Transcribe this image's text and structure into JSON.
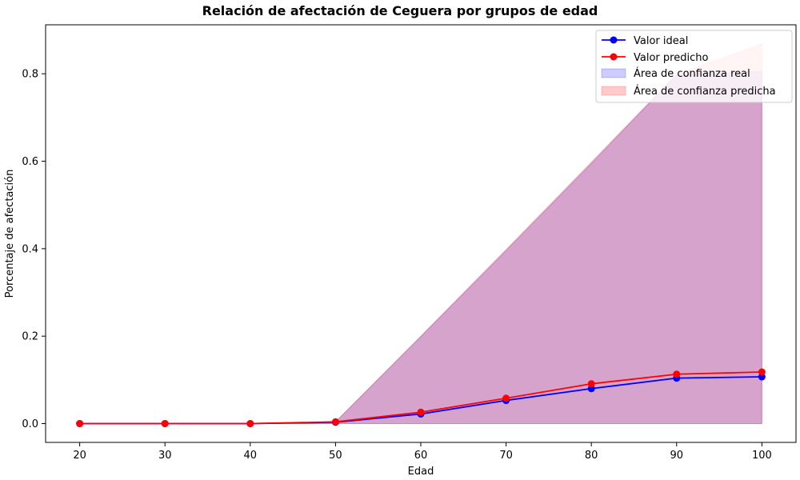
{
  "chart_data": {
    "type": "line",
    "title": "Relación de afectación de Ceguera por grupos de edad",
    "xlabel": "Edad",
    "ylabel": "Porcentaje de afectación",
    "x": [
      20,
      30,
      40,
      50,
      60,
      70,
      80,
      90,
      100
    ],
    "xticks": [
      "20",
      "30",
      "40",
      "50",
      "60",
      "70",
      "80",
      "90",
      "100"
    ],
    "yticks": [
      "0.0",
      "0.2",
      "0.4",
      "0.6",
      "0.8"
    ],
    "xlim": [
      16,
      104
    ],
    "ylim": [
      -0.043,
      0.912
    ],
    "grid": false,
    "legend_position": "top-right",
    "series": [
      {
        "name": "Valor ideal",
        "color": "#0000ff",
        "values": [
          0.0,
          0.0,
          0.0,
          0.003,
          0.022,
          0.053,
          0.08,
          0.104,
          0.107
        ]
      },
      {
        "name": "Valor predicho",
        "color": "#ff0000",
        "values": [
          0.0,
          0.0,
          0.0,
          0.004,
          0.026,
          0.058,
          0.091,
          0.113,
          0.118
        ]
      }
    ],
    "bands": [
      {
        "name": "Área de confianza real",
        "color": "#0000ff",
        "lower": [
          0,
          0,
          0,
          0,
          0,
          0,
          0,
          0,
          0
        ],
        "upper": [
          0,
          0,
          0,
          0.004,
          0.199,
          0.396,
          0.595,
          0.798,
          0.805
        ]
      },
      {
        "name": "Área de confianza predicha",
        "color": "#ff0000",
        "lower": [
          0,
          0,
          0,
          0,
          0,
          0,
          0,
          0,
          0
        ],
        "upper": [
          0,
          0,
          0,
          0.004,
          0.2,
          0.398,
          0.598,
          0.799,
          0.868
        ]
      }
    ]
  }
}
